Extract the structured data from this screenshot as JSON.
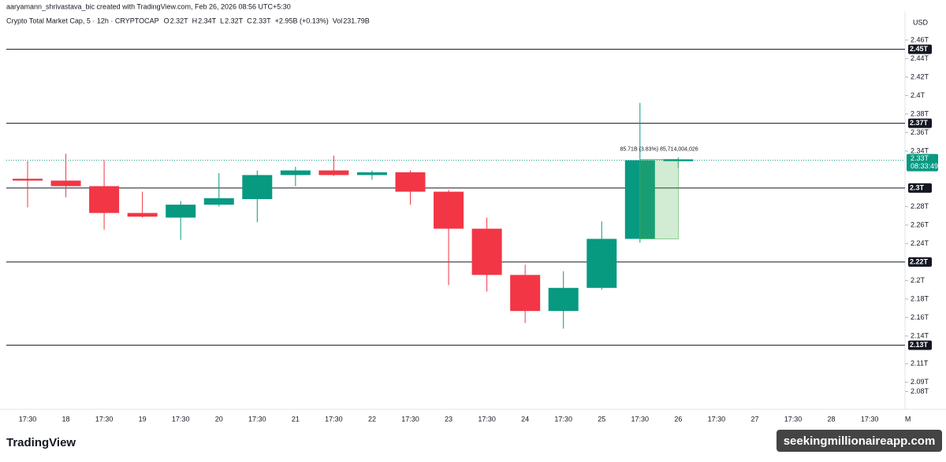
{
  "header": {
    "credit": "aaryamann_shrivastava_bic created with TradingView.com, Feb 26, 2026 08:56 UTC+5:30",
    "symbol": "Crypto Total Market Cap, 5 · 12h · CRYPTOCAP",
    "ohlc": [
      {
        "label": "O",
        "value": "2.32T"
      },
      {
        "label": "H",
        "value": "2.34T"
      },
      {
        "label": "L",
        "value": "2.32T"
      },
      {
        "label": "C",
        "value": "2.33T"
      }
    ],
    "change": "+2.95B (+0.13%)",
    "volume_label": "Vol",
    "volume": "231.79B",
    "currency": "USD"
  },
  "chart_data": {
    "type": "candlestick",
    "categories": [
      "17:30",
      "18",
      "17:30",
      "19",
      "17:30",
      "20",
      "17:30",
      "21",
      "17:30",
      "22",
      "17:30",
      "23",
      "17:30",
      "24",
      "17:30",
      "25",
      "17:30",
      "26",
      "17:30",
      "27",
      "17:30",
      "28",
      "17:30",
      "M"
    ],
    "open": [
      2.31,
      2.308,
      2.302,
      2.273,
      2.268,
      2.282,
      2.288,
      2.314,
      2.319,
      2.314,
      2.317,
      2.296,
      2.256,
      2.206,
      2.167,
      2.192,
      2.245,
      2.329,
      null,
      null,
      null,
      null,
      null,
      null
    ],
    "high": [
      2.329,
      2.337,
      2.33,
      2.296,
      2.286,
      2.316,
      2.319,
      2.323,
      2.335,
      2.319,
      2.319,
      2.298,
      2.268,
      2.217,
      2.21,
      2.264,
      2.392,
      2.333,
      null,
      null,
      null,
      null,
      null,
      null
    ],
    "low": [
      2.279,
      2.29,
      2.255,
      2.268,
      2.244,
      2.28,
      2.263,
      2.302,
      2.313,
      2.309,
      2.282,
      2.195,
      2.188,
      2.154,
      2.148,
      2.19,
      2.241,
      2.322,
      null,
      null,
      null,
      null,
      null,
      null
    ],
    "close": [
      2.308,
      2.302,
      2.273,
      2.269,
      2.282,
      2.289,
      2.314,
      2.319,
      2.314,
      2.317,
      2.296,
      2.256,
      2.206,
      2.167,
      2.192,
      2.245,
      2.33,
      2.331,
      null,
      null,
      null,
      null,
      null,
      null
    ],
    "up_color": "#089981",
    "down_color": "#f23645",
    "ylim": [
      2.065,
      2.465
    ],
    "yticks": [
      {
        "value": 2.46,
        "label": "2.46T"
      },
      {
        "value": 2.44,
        "label": "2.44T"
      },
      {
        "value": 2.42,
        "label": "2.42T"
      },
      {
        "value": 2.4,
        "label": "2.4T"
      },
      {
        "value": 2.38,
        "label": "2.38T"
      },
      {
        "value": 2.36,
        "label": "2.36T"
      },
      {
        "value": 2.34,
        "label": "2.34T"
      },
      {
        "value": 2.28,
        "label": "2.28T"
      },
      {
        "value": 2.26,
        "label": "2.26T"
      },
      {
        "value": 2.24,
        "label": "2.24T"
      },
      {
        "value": 2.2,
        "label": "2.2T"
      },
      {
        "value": 2.18,
        "label": "2.18T"
      },
      {
        "value": 2.16,
        "label": "2.16T"
      },
      {
        "value": 2.14,
        "label": "2.14T"
      },
      {
        "value": 2.11,
        "label": "2.11T"
      },
      {
        "value": 2.09,
        "label": "2.09T"
      },
      {
        "value": 2.08,
        "label": "2.08T"
      }
    ],
    "hlines": [
      {
        "value": 2.45,
        "label": "2.45T"
      },
      {
        "value": 2.37,
        "label": "2.37T"
      },
      {
        "value": 2.3,
        "label": "2.3T"
      },
      {
        "value": 2.22,
        "label": "2.22T"
      },
      {
        "value": 2.13,
        "label": "2.13T"
      }
    ],
    "last_price": {
      "value": 2.33,
      "label": "2.33T"
    },
    "countdown": "08:33:49",
    "measure_label": "85.71B (3.83%) 85,714,004,026"
  },
  "footer": {
    "logo": "TradingView",
    "watermark": "seekingmillionaireapp.com"
  }
}
